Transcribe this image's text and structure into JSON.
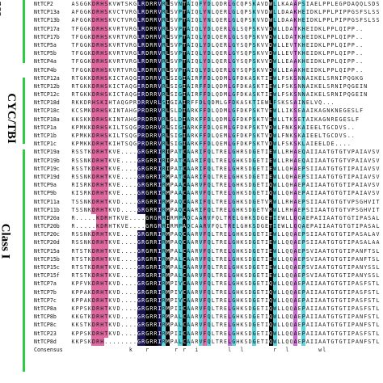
{
  "class_labels": {
    "top": "ass",
    "cyc": "CYC/TBI",
    "class1": "Class I"
  },
  "colors": {
    "bar": "#2ecc40",
    "pink": "#e06aa0",
    "cyan": "#5fd3dc",
    "navy": "#1a1550",
    "black": "#000000",
    "magenta": "#c86ad0"
  },
  "rows": [
    {
      "name": "NtTCP2",
      "seq": "ASGGKDRHSKVWTSKGLRDRRVRLSVNTAIQFYDLQDRLGCQPSKAVDWLLKAAAPSIAELPPLEGPDAQQLSDSS"
    },
    {
      "name": "NtTCP13a",
      "seq": "AFGGKDRHSKVCTVRGLRDRRVRLSVPTAIQLYNLQERLGLQPSKVVDWLLDAAKHEIDKLPPLPIPPGSFSLSS"
    },
    {
      "name": "NtTCP13b",
      "seq": "AFGGKDRHSKVCTVRGLRDRRVRLSVPTAIQLYNLQERLGLQPSKVVDWLLDAAKHEIDKLPPLPIPPGSFSLSS"
    },
    {
      "name": "NtTCP17a",
      "seq": "TFGGKDRHSKVRTVRGLRDRRVRLSVPTAIQLYDLQERLGLSQPSKVVDWLLDATKHEIDKLPPLQIPP.."
    },
    {
      "name": "NtTCP17b",
      "seq": "TFGGKDRHSKVRTVRGLRDRRVRLSVPTAIQLYDLQERLGLSQPSKVVDWLLDATKHEIDKLPPLQIPP.."
    },
    {
      "name": "NtTCP5a",
      "seq": "TFGGKDRHSKVRTVRGLRDRRVRLSVPTAIQLYDLQERLGYSQPSKVVDWLLEVTKHEIDKLPPLQIPP.."
    },
    {
      "name": "NtTCP5b",
      "seq": "TFGGKDRHSKVRTVRGLRDRRVRLSVPTAIQLYDLQERLGYSQPSKVVDWLLEVTKHEIDKLPPLQIPP.."
    },
    {
      "name": "NtTCP4a",
      "seq": "TFGGKDRHSKVRTVRGLRDRRVRLSVPTAIQLYDLQERLGYSQPSKVVDWLLEAAKHEIDKLPPLQIPP.."
    },
    {
      "name": "NtTCP4b",
      "seq": "TFGGKDRHSKVRTVRGLRDRRVRLSVPTAIQLYDLQERLGYSQPSKVVDWLLEAAKHEIDKLPPLQIPP.."
    },
    {
      "name": "NtTCP12a",
      "seq": "RTGKKDRHSKICTAQGIRDRRVRLSIGIAIRFFDLQDMLGFDKASKTIEWLFSKSNNAIKELSRNIPQGKG"
    },
    {
      "name": "NtTCP12b",
      "seq": "RTGKKDRHSKICTAQGIRDRRVRLSIGIAIRFFDLQDMLGFDKASKTIEWLFSKSNNAIKELSRNIPQGEIN"
    },
    {
      "name": "NtTCP12c",
      "seq": "RTGKKDRHSKICTAQGIRDRRVRLSIGIAIRFFDLQDMLGFDKASKTIEWLFSKSNNAIKELSRNIPQGEIN"
    },
    {
      "name": "NtTCP18d",
      "seq": "RKKDRHSKIHTAQGPRDRRVRLSIGIAIRFFDLQDMLGFDKASKTIEWLFSKSSAINELVQ..."
    },
    {
      "name": "NtTCP18c",
      "seq": "KCSMKDRHSKINTAHGPRDRRVRLSLDIARKFFDLQDMLGFDKPSKTVEWLLIKSEAAIKAGNKNEGESLF"
    },
    {
      "name": "NtTCP18a",
      "seq": "KKSKKDRHSKINTAHGPRDRRVRLSLDIARKFFDLQDMLGFDKPSKTVEWLLTKSETAIKAGNREGESLF"
    },
    {
      "name": "NtTCP1a",
      "seq": "KPMKKDRHSKILTSQGPRDRRVRLSIGIARKFFDLQEMLGFDKPSKTVDWLFNKSKAIEELTGCDVS.."
    },
    {
      "name": "NtTCP1b",
      "seq": "KPMKKDRHSKILTSQGPRDRRVRLSIGIARKFFDLQEMLGFDKPSKTVDWLFNKSKAIEELTGCDVS.."
    },
    {
      "name": "NtTCP1c",
      "seq": "KPMKKDRHTKIHTSQGPRDRRVRLSIGIARKFFDLQEMLGFDKPSKTVDWLFSKSKLAIEELDE...."
    },
    {
      "name": "NtTCP19a",
      "seq": "RSSTKDRHTKVE....GRGRRIRIPATCAARIFQLTRELGHRSDGETIEWLLRHAEQAIIAATGTGTVPAIAVSVNG"
    },
    {
      "name": "NtTCP19b",
      "seq": "RSSNKDRHTKVE....GRGRRIRIPATCAARIFQLTRELGHKSDGETIEWLLRHAEQAIIAATGTGTVPAIAVSVNG"
    },
    {
      "name": "NtTCP19c",
      "seq": "RSSTKDRHTKVE....GRGRRIRIPATCAARIFQLTRELGHRSDGETIEWLLQHAEPSIIAATGTGTIPAIAVSVNG"
    },
    {
      "name": "NtTCP19d",
      "seq": "RSSNKDRHTKVE....GRGRRIRMPATCAARIFQLTRELGHKSDGETIEWLLQHAEPSIIAATGTGTIPAIAVSVNG"
    },
    {
      "name": "NtTCP9a",
      "seq": "RISRKDRHTKVE....GRGRRIRMPAACAARVFQLTRELGHKSDGETIQWLLQHAEPAIIAATGTGTIPAIAVSVNG"
    },
    {
      "name": "NtTCP9b",
      "seq": "KISRKDRHTKVE....GRGRRIRMPAACAARVFQLTRELGHKSDGETIQWLLQHAEPAIIAATGTGTIPAIAVSVNG"
    },
    {
      "name": "NtTCP11a",
      "seq": "TSSNKDRHTKVD....GRGRRIRMPAQCAARIFQLTRELGHKSDGETVRWLLRHAEPSIIAATGTGTVPSGHVITA"
    },
    {
      "name": "NtTCP11b",
      "seq": "TSSNKDRHTKVD....GRGRRIRMPAQCAARIFQLTRELGHKSDGETVRWLLRHAEPSIIAATGTGTVPSGHVITA"
    },
    {
      "name": "NtTCP20a",
      "seq": "R.....KDRHTKVE....GRGRRIRMPAQCAARVFQLTRELGHKSDGETIEWLLQQAEPAIIAATGTGTIPASALAAA"
    },
    {
      "name": "NtTCP20b",
      "seq": "R.....KDRHTKVE....GRGRRIRMPAQCAARVFQLTRELGHKSDGETIEWLLQQAEPAIIAATGTGTIPASALAAA"
    },
    {
      "name": "NtTCP20c",
      "seq": "RSSNKDRHTKVE....GRGRRIRMPAQCAARVFQLTRELGHKSDGETIEWLLQQAEPSIIAATGTGTIPASALAVI"
    },
    {
      "name": "NtTCP20d",
      "seq": "RSSNKDRHTKVE....GRGRRIRMPAQCAARVFQLTRELGHKSDGETIEWLLQQAEPSIIAATGTGTIPASALAAA"
    },
    {
      "name": "NtTCP15a",
      "seq": "RTSTKDRHTKVE....GRGRRIRMPALCAARVFQLTRELGHKSDGETIEWLLQQAEPSVIAATGTGTIPANFTSLN"
    },
    {
      "name": "NtTCP15b",
      "seq": "RTSTKDRHTKVE....GRGRRIRMPALCAARVFQLTRELGHKSDGETIEWLLQQAEPSVIAATGTGTIPANFTSLN"
    },
    {
      "name": "NtTCP15c",
      "seq": "RTSTKDRHTKVE....GRGRRIRMPALCAARVFQLTRELGHKSDGETIEWLLQQAEPSVIAATGTGTIPANYSSLN"
    },
    {
      "name": "NtTCP15f",
      "seq": "RTSTKDRHTKVE....GRGRRIRMPALCAARVFQLTRELGHKSDGETIEWLLQQAEPSVIAATGTGTIPANYSSLN"
    },
    {
      "name": "NtTCP7a",
      "seq": "KPFVKDRHTKVD....GRGRRIRMPIVCAARVFQLTRELGHKSDGETIQWLLQQAEPAIIAATGTGTIPASFSTLS"
    },
    {
      "name": "NtTCP7b",
      "seq": "KPPAKDRHTKVD....GRGRRIRMPIVCAARVFQLTRELGHKSDGETIQWLLQQAEPAIIAATGTGTIPASFSTLS"
    },
    {
      "name": "NtTCP7c",
      "seq": "KPPAKDRHTKVD....GRGRRIRMPIVCAARVFQLTRELGHKSDGETIQWLLQQAEPAIIAATGTGTIPASFSTLS"
    },
    {
      "name": "NtTCP8a",
      "seq": "KPPSKDRHTKVD....GRGRRIRMPIICAARVFQLTRELGHKSDGETIQWLLQQAEPAIIAATGTGTIPASFSTLS"
    },
    {
      "name": "NtTCP8b",
      "seq": "KKGTKDRHTKVD....GRGRRIRMPALCAARVFQLTRELGHKSDGETIQWLLQQAEPAIIAATGTGTIPANFSTLN"
    },
    {
      "name": "NtTCP8c",
      "seq": "KKSTKDRHTKVD....GRGRRIRMPALCAARVFQLTRELGHKSDGETIQWLLQQAEPAIIAATGTGTIPANFSTLN"
    },
    {
      "name": "NtTCP23",
      "seq": "KPPSKDRHTKVD....GRGRRIRMPIICAARVFQLTRELGHKSDGETIQWLLQQAEPAIIAATGTGTIPASFSTLS"
    },
    {
      "name": "NtTCP8d",
      "seq": "KKPSKDRH........GRGRRIRMPALCAARVFQLTRELGHKSDGETIQWLLQQAEPAIIAATGTGTIPANFSTLN"
    }
  ],
  "consensus": {
    "name": "Consensus",
    "seq": "              k   r      r r  i       l  l       r  l       wl            "
  }
}
